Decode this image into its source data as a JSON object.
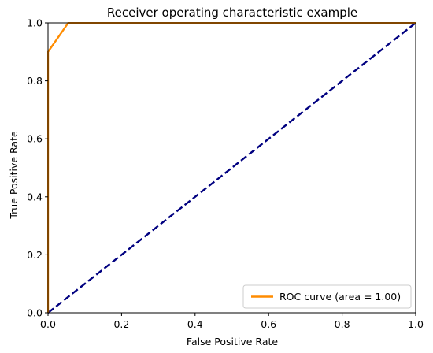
{
  "chart_data": {
    "type": "line",
    "title": "Receiver operating characteristic example",
    "xlabel": "False Positive Rate",
    "ylabel": "True Positive Rate",
    "xlim": [
      0.0,
      1.0
    ],
    "ylim": [
      0.0,
      1.0
    ],
    "xticks": [
      0.0,
      0.2,
      0.4,
      0.6,
      0.8,
      1.0
    ],
    "yticks": [
      0.0,
      0.2,
      0.4,
      0.6,
      0.8,
      1.0
    ],
    "xtick_labels": [
      "0.0",
      "0.2",
      "0.4",
      "0.6",
      "0.8",
      "1.0"
    ],
    "ytick_labels": [
      "0.0",
      "0.2",
      "0.4",
      "0.6",
      "0.8",
      "1.0"
    ],
    "grid": false,
    "legend_position": "lower-right",
    "series": [
      {
        "name": "ROC curve (area = 1.00)",
        "color": "#ff8c00",
        "style": "solid",
        "x": [
          0.0,
          0.0,
          0.055,
          1.0
        ],
        "y": [
          0.0,
          0.9,
          1.0,
          1.0
        ]
      },
      {
        "color": "#000080",
        "style": "dashed",
        "x": [
          0.0,
          1.0
        ],
        "y": [
          0.0,
          1.0
        ]
      }
    ]
  }
}
